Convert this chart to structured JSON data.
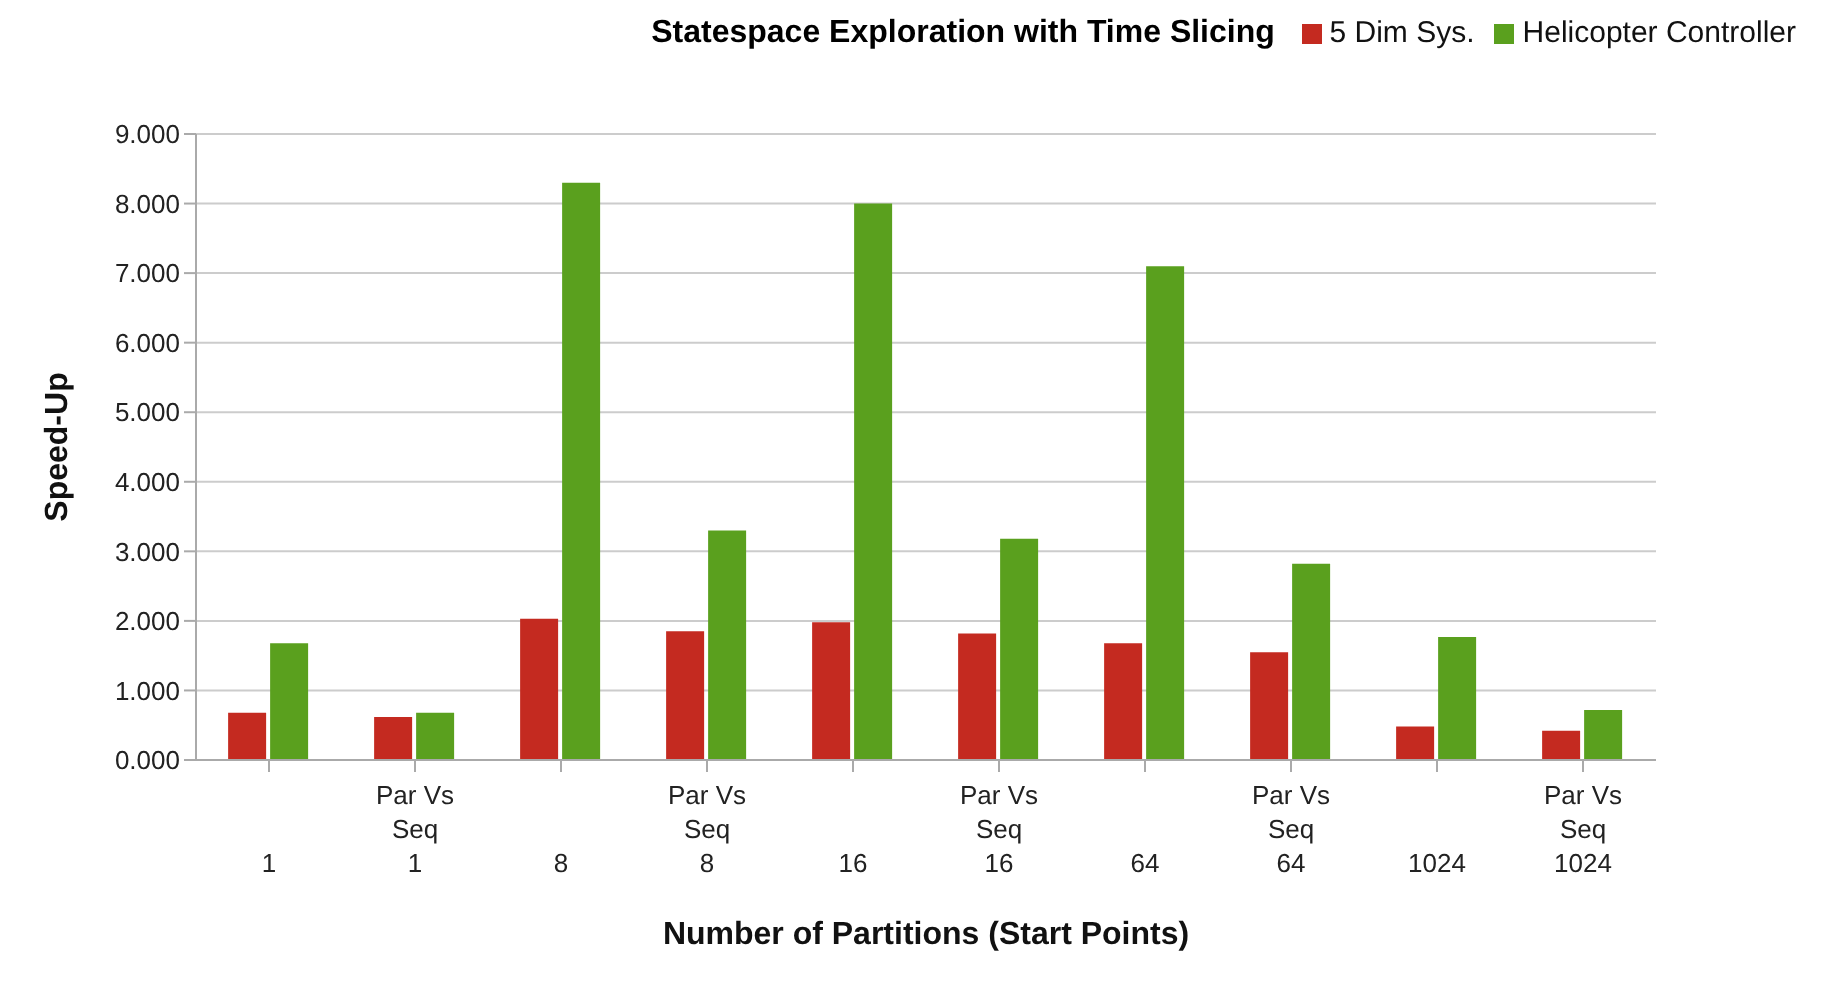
{
  "chart_data": {
    "type": "bar",
    "title": "Statespace Exploration with Time Slicing",
    "xlabel": "Number of Partitions (Start Points)",
    "ylabel": "Speed-Up",
    "categories": [
      "\n\n1",
      "Par Vs\nSeq\n1",
      "\n\n8",
      "Par Vs\nSeq\n8",
      "\n\n16",
      "Par Vs\nSeq\n16",
      "\n\n64",
      "Par Vs\nSeq\n64",
      "\n\n1024",
      "Par Vs\nSeq\n1024"
    ],
    "series": [
      {
        "name": "5 Dim Sys.",
        "color": "#c42a20",
        "values": [
          0.68,
          0.62,
          2.03,
          1.85,
          1.98,
          1.82,
          1.68,
          1.55,
          0.48,
          0.42
        ]
      },
      {
        "name": "Helicopter Controller",
        "color": "#5aa01e",
        "values": [
          1.68,
          0.68,
          8.3,
          3.3,
          8.0,
          3.18,
          7.1,
          2.82,
          1.77,
          0.72
        ]
      }
    ],
    "ylim": [
      0,
      9
    ],
    "yticks": [
      {
        "value": 0,
        "label": "0.000"
      },
      {
        "value": 1,
        "label": "1.000"
      },
      {
        "value": 2,
        "label": "2.000"
      },
      {
        "value": 3,
        "label": "3.000"
      },
      {
        "value": 4,
        "label": "4.000"
      },
      {
        "value": 5,
        "label": "5.000"
      },
      {
        "value": 6,
        "label": "6.000"
      },
      {
        "value": 7,
        "label": "7.000"
      },
      {
        "value": 8,
        "label": "8.000"
      },
      {
        "value": 9,
        "label": "9.000"
      }
    ],
    "grid": "y",
    "legend": "top right"
  }
}
